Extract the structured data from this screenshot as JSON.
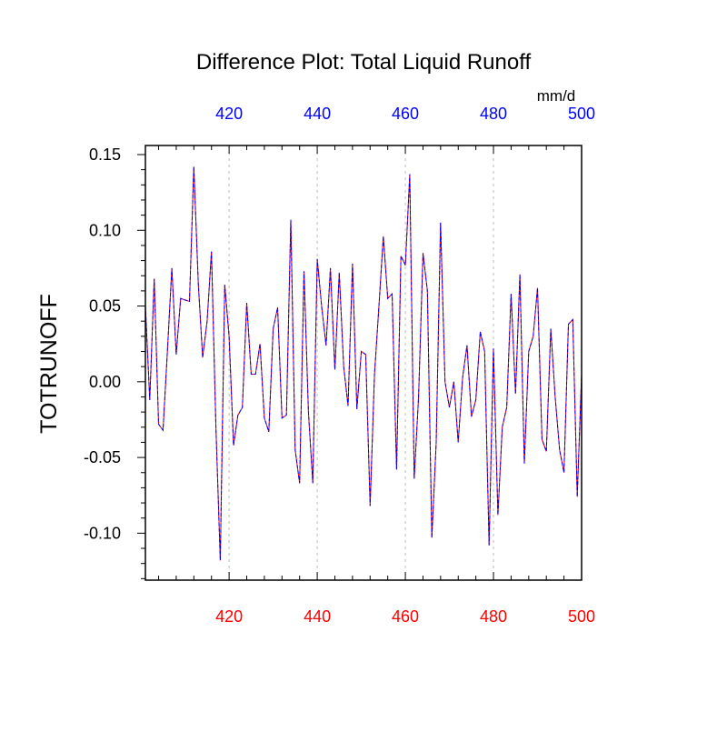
{
  "chart_data": {
    "type": "line",
    "title": "Difference Plot: Total Liquid Runoff",
    "units": "mm/d",
    "ylabel": "TOTRUNOFF",
    "xlabel": "",
    "xlim": [
      401,
      500
    ],
    "ylim": [
      -0.131,
      0.156
    ],
    "x_ticks": [
      420,
      440,
      460,
      480,
      500
    ],
    "y_ticks": [
      0.15,
      0.1,
      0.05,
      0.0,
      -0.05,
      -0.1
    ],
    "y_tick_labels": [
      "0.15",
      "0.10",
      "0.05",
      "0.00",
      "-0.05",
      "-0.10"
    ],
    "grid": "vertical dashed at major x ticks",
    "colors": {
      "bottom_axis": "#ff0000",
      "top_axis": "#0000ff",
      "series_a": "#ff0000",
      "series_b": "#0000ff"
    },
    "x_start": 401,
    "series": [
      {
        "name": "series-red",
        "style": "solid",
        "color": "#ff0000",
        "values": [
          0.05,
          -0.012,
          0.068,
          -0.028,
          -0.032,
          0.02,
          0.075,
          0.018,
          0.055,
          0.054,
          0.053,
          0.142,
          0.065,
          0.016,
          0.04,
          0.086,
          -0.03,
          -0.118,
          0.064,
          0.03,
          -0.042,
          -0.022,
          -0.017,
          0.052,
          0.005,
          0.005,
          0.025,
          -0.024,
          -0.033,
          0.035,
          0.049,
          -0.024,
          -0.022,
          0.107,
          -0.045,
          -0.067,
          0.073,
          -0.02,
          -0.067,
          0.081,
          0.05,
          0.024,
          0.075,
          0.008,
          0.072,
          0.01,
          -0.016,
          0.078,
          -0.018,
          0.02,
          0.018,
          -0.082,
          0.005,
          0.05,
          0.096,
          0.055,
          0.058,
          -0.058,
          0.083,
          0.077,
          0.137,
          -0.064,
          -0.01,
          0.085,
          0.06,
          -0.103,
          -0.04,
          0.105,
          0.0,
          -0.017,
          0.0,
          -0.04,
          0.003,
          0.024,
          -0.023,
          -0.012,
          0.033,
          0.02,
          -0.108,
          0.022,
          -0.088,
          -0.03,
          -0.017,
          0.058,
          -0.008,
          0.071,
          -0.054,
          0.02,
          0.03,
          0.062,
          -0.038,
          -0.046,
          0.035,
          -0.01,
          -0.045,
          -0.06,
          0.038,
          0.041,
          -0.076,
          0.005
        ]
      },
      {
        "name": "series-blue",
        "style": "dashed",
        "color": "#0000ff",
        "values": [
          0.05,
          -0.012,
          0.068,
          -0.028,
          -0.032,
          0.02,
          0.075,
          0.018,
          0.055,
          0.054,
          0.053,
          0.142,
          0.065,
          0.016,
          0.04,
          0.086,
          -0.03,
          -0.118,
          0.064,
          0.03,
          -0.042,
          -0.022,
          -0.017,
          0.052,
          0.005,
          0.005,
          0.025,
          -0.024,
          -0.033,
          0.035,
          0.049,
          -0.024,
          -0.022,
          0.107,
          -0.045,
          -0.067,
          0.073,
          -0.02,
          -0.067,
          0.081,
          0.05,
          0.024,
          0.075,
          0.008,
          0.072,
          0.01,
          -0.016,
          0.078,
          -0.018,
          0.02,
          0.018,
          -0.082,
          0.005,
          0.05,
          0.096,
          0.055,
          0.058,
          -0.058,
          0.083,
          0.077,
          0.137,
          -0.064,
          -0.01,
          0.085,
          0.06,
          -0.103,
          -0.04,
          0.105,
          0.0,
          -0.017,
          0.0,
          -0.04,
          0.003,
          0.024,
          -0.023,
          -0.012,
          0.033,
          0.02,
          -0.108,
          0.022,
          -0.088,
          -0.03,
          -0.017,
          0.058,
          -0.008,
          0.071,
          -0.054,
          0.02,
          0.03,
          0.062,
          -0.038,
          -0.046,
          0.035,
          -0.01,
          -0.045,
          -0.06,
          0.038,
          0.041,
          -0.076,
          0.005
        ]
      }
    ]
  }
}
